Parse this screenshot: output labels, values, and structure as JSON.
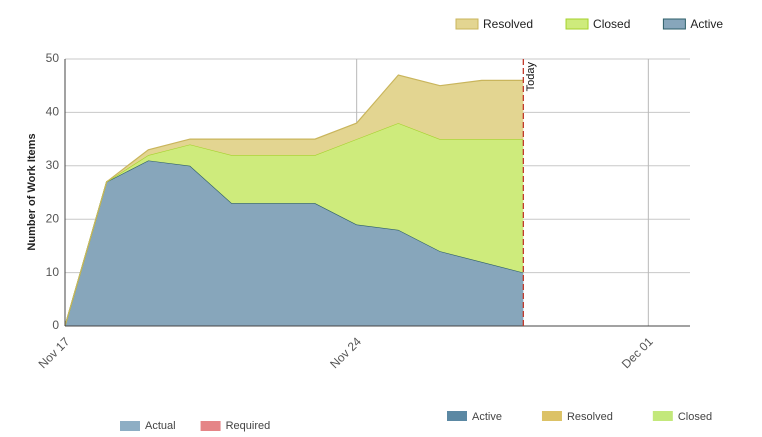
{
  "chart_data": {
    "type": "stacked-area",
    "y_label": "Number of Work Items",
    "x": [
      "Nov 17",
      "Nov 18",
      "Nov 19",
      "Nov 20",
      "Nov 21",
      "Nov 22",
      "Nov 23",
      "Nov 24",
      "Nov 25",
      "Nov 26",
      "Nov 27",
      "Nov 28"
    ],
    "xlim": [
      "Nov 17",
      "Dec 02"
    ],
    "xticks": [
      "Nov 17",
      "Nov 24",
      "Dec 01"
    ],
    "ylim": [
      0,
      50
    ],
    "yticks": [
      0,
      10,
      20,
      30,
      40,
      50
    ],
    "grid": true,
    "legend": "top-right",
    "series": [
      {
        "name": "Active",
        "color": "#87a6bb",
        "line": "#2e5f68",
        "values": [
          0,
          27,
          31,
          30,
          23,
          23,
          23,
          19,
          18,
          14,
          12,
          10
        ]
      },
      {
        "name": "Closed",
        "color": "#ceeb7c",
        "line": "#a5d22c",
        "values": [
          0,
          0,
          1,
          4,
          9,
          9,
          9,
          16,
          20,
          21,
          23,
          25
        ]
      },
      {
        "name": "Resolved",
        "color": "#e3d591",
        "line": "#c9b55c",
        "values": [
          0,
          0,
          1,
          1,
          3,
          3,
          3,
          3,
          9,
          10,
          11,
          11
        ]
      }
    ],
    "legend_order": [
      "Resolved",
      "Closed",
      "Active"
    ],
    "annotation": {
      "text": "Today",
      "x": "Nov 28",
      "color": "#c0392b"
    },
    "legend_bottom_left": [
      {
        "name": "Actual",
        "color": "#8eaec4"
      },
      {
        "name": "Required",
        "color": "#e58587"
      }
    ],
    "legend_bottom_right": [
      {
        "name": "Active",
        "color": "#5b88a3"
      },
      {
        "name": "Resolved",
        "color": "#dcc266"
      },
      {
        "name": "Closed",
        "color": "#c3e87b"
      }
    ]
  }
}
